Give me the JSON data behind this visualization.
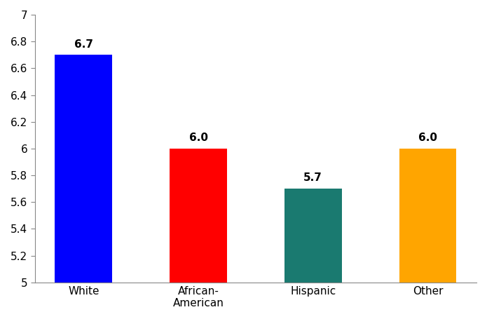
{
  "categories": [
    "White",
    "African-\nAmerican",
    "Hispanic",
    "Other"
  ],
  "values": [
    6.7,
    6.0,
    5.7,
    6.0
  ],
  "bar_colors": [
    "#0000FF",
    "#FF0000",
    "#1A7A70",
    "#FFA500"
  ],
  "value_labels": [
    "6.7",
    "6.0",
    "5.7",
    "6.0"
  ],
  "ylim": [
    5,
    7
  ],
  "yticks": [
    5,
    5.2,
    5.4,
    5.6,
    5.8,
    6,
    6.2,
    6.4,
    6.6,
    6.8,
    7
  ],
  "bar_width": 0.5,
  "label_fontsize": 11,
  "tick_fontsize": 11,
  "background_color": "#FFFFFF"
}
